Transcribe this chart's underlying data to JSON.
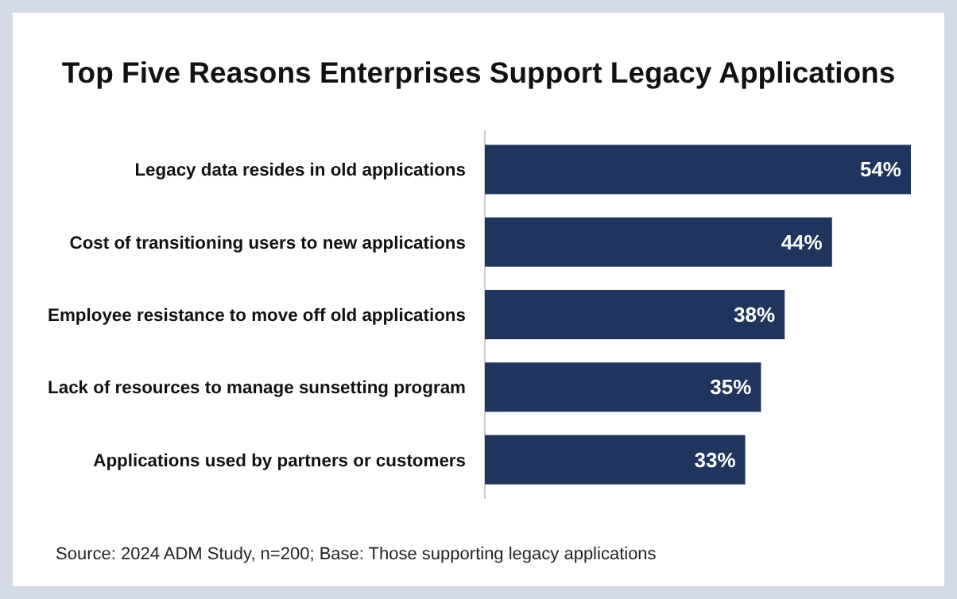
{
  "chart_data": {
    "type": "bar",
    "orientation": "horizontal",
    "title": "Top Five Reasons Enterprises Support Legacy Applications",
    "categories": [
      "Legacy data resides in old applications",
      "Cost of transitioning users to new applications",
      "Employee resistance to move off old applications",
      "Lack of resources to manage sunsetting program",
      "Applications used by partners or customers"
    ],
    "values": [
      54,
      44,
      38,
      35,
      33
    ],
    "value_labels": [
      "54%",
      "44%",
      "38%",
      "35%",
      "33%"
    ],
    "color": "#1f355e",
    "annotations": [
      "Source: 2024 ADM Study, n=200; Base: Those supporting legacy applications"
    ]
  }
}
